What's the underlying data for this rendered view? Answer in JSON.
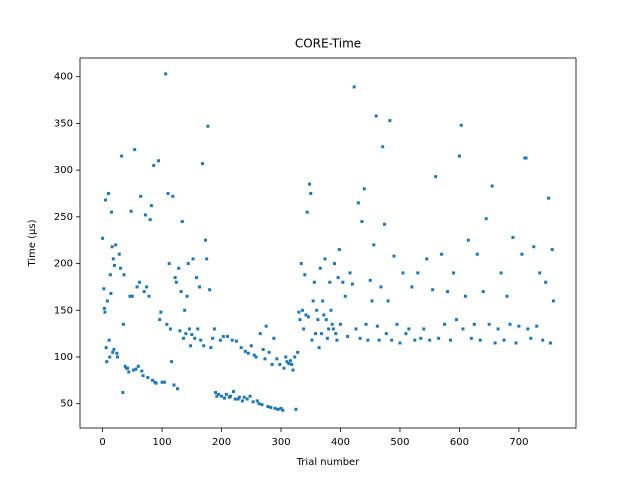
{
  "chart_data": {
    "type": "scatter",
    "title": "CORE-Time",
    "x_label": "Trial number",
    "y_label": "Time (μs)",
    "color": "#1f77b4",
    "xlim": [
      -38,
      796
    ],
    "ylim": [
      24,
      420
    ],
    "xticks": [
      0,
      100,
      200,
      300,
      400,
      500,
      600,
      700
    ],
    "yticks": [
      50,
      100,
      150,
      200,
      250,
      300,
      350,
      400
    ],
    "x": [
      0,
      2,
      3,
      4,
      5,
      6,
      7,
      8,
      10,
      11,
      12,
      13,
      14,
      15,
      16,
      17,
      18,
      19,
      20,
      22,
      24,
      25,
      28,
      30,
      32,
      34,
      35,
      36,
      38,
      40,
      42,
      44,
      46,
      48,
      50,
      52,
      54,
      56,
      58,
      60,
      62,
      64,
      66,
      68,
      70,
      72,
      74,
      76,
      78,
      80,
      82,
      84,
      86,
      88,
      90,
      94,
      96,
      98,
      100,
      104,
      106,
      108,
      110,
      112,
      114,
      116,
      118,
      120,
      122,
      124,
      126,
      128,
      130,
      132,
      134,
      136,
      138,
      140,
      142,
      144,
      146,
      148,
      150,
      152,
      155,
      158,
      160,
      163,
      165,
      168,
      170,
      173,
      175,
      177,
      180,
      182,
      185,
      188,
      190,
      192,
      195,
      198,
      200,
      203,
      205,
      208,
      210,
      213,
      215,
      218,
      220,
      223,
      225,
      228,
      230,
      233,
      235,
      238,
      240,
      243,
      245,
      248,
      250,
      253,
      255,
      258,
      260,
      263,
      265,
      268,
      270,
      273,
      275,
      278,
      280,
      283,
      285,
      288,
      290,
      293,
      295,
      298,
      300,
      303,
      305,
      308,
      310,
      313,
      316,
      318,
      320,
      323,
      325,
      328,
      330,
      332,
      334,
      336,
      338,
      340,
      342,
      344,
      346,
      348,
      350,
      352,
      354,
      356,
      358,
      360,
      362,
      364,
      366,
      368,
      370,
      372,
      374,
      376,
      378,
      380,
      382,
      384,
      386,
      388,
      390,
      392,
      394,
      396,
      398,
      400,
      404,
      408,
      412,
      416,
      420,
      423,
      426,
      430,
      433,
      436,
      440,
      443,
      446,
      450,
      453,
      456,
      460,
      462,
      465,
      468,
      471,
      474,
      477,
      480,
      483,
      486,
      490,
      495,
      500,
      505,
      510,
      515,
      520,
      525,
      530,
      535,
      540,
      545,
      550,
      555,
      560,
      565,
      570,
      575,
      580,
      585,
      590,
      595,
      600,
      603,
      606,
      610,
      615,
      620,
      625,
      630,
      635,
      640,
      645,
      650,
      655,
      660,
      665,
      670,
      675,
      680,
      685,
      690,
      695,
      700,
      705,
      710,
      712,
      715,
      720,
      725,
      730,
      735,
      740,
      745,
      750,
      753,
      756,
      758
    ],
    "values": [
      227,
      173,
      152,
      148,
      268,
      110,
      95,
      160,
      275,
      118,
      100,
      188,
      168,
      255,
      218,
      105,
      205,
      108,
      198,
      220,
      104,
      100,
      210,
      195,
      315,
      62,
      135,
      188,
      90,
      88,
      88,
      84,
      165,
      256,
      165,
      86,
      322,
      87,
      175,
      90,
      180,
      272,
      85,
      80,
      170,
      252,
      175,
      78,
      165,
      247,
      262,
      75,
      305,
      73,
      72,
      310,
      140,
      148,
      73,
      73,
      403,
      135,
      275,
      200,
      130,
      95,
      272,
      70,
      185,
      180,
      66,
      195,
      128,
      170,
      245,
      120,
      150,
      125,
      165,
      200,
      130,
      112,
      124,
      205,
      120,
      185,
      130,
      175,
      118,
      307,
      112,
      225,
      205,
      347,
      172,
      110,
      120,
      130,
      62,
      58,
      60,
      118,
      58,
      122,
      56,
      60,
      122,
      57,
      58,
      118,
      63,
      55,
      117,
      55,
      57,
      110,
      53,
      57,
      106,
      55,
      104,
      58,
      112,
      52,
      102,
      100,
      53,
      50,
      125,
      49,
      108,
      98,
      133,
      47,
      105,
      46,
      92,
      120,
      45,
      98,
      44,
      92,
      45,
      43,
      88,
      100,
      95,
      93,
      96,
      92,
      86,
      100,
      44,
      105,
      148,
      140,
      200,
      150,
      130,
      188,
      145,
      255,
      143,
      285,
      275,
      118,
      160,
      180,
      125,
      150,
      140,
      110,
      195,
      125,
      160,
      145,
      205,
      140,
      120,
      130,
      180,
      150,
      135,
      130,
      200,
      125,
      118,
      185,
      215,
      135,
      180,
      165,
      122,
      190,
      178,
      389,
      130,
      265,
      120,
      245,
      280,
      135,
      118,
      182,
      160,
      220,
      358,
      133,
      118,
      175,
      325,
      242,
      125,
      160,
      353,
      118,
      208,
      135,
      115,
      190,
      125,
      130,
      175,
      118,
      190,
      120,
      130,
      205,
      118,
      172,
      293,
      120,
      210,
      135,
      170,
      118,
      190,
      140,
      315,
      348,
      130,
      165,
      225,
      120,
      135,
      210,
      118,
      170,
      248,
      135,
      283,
      115,
      130,
      190,
      118,
      165,
      135,
      228,
      115,
      133,
      210,
      313,
      313,
      130,
      120,
      218,
      133,
      190,
      118,
      180,
      270,
      115,
      215,
      160
    ]
  }
}
